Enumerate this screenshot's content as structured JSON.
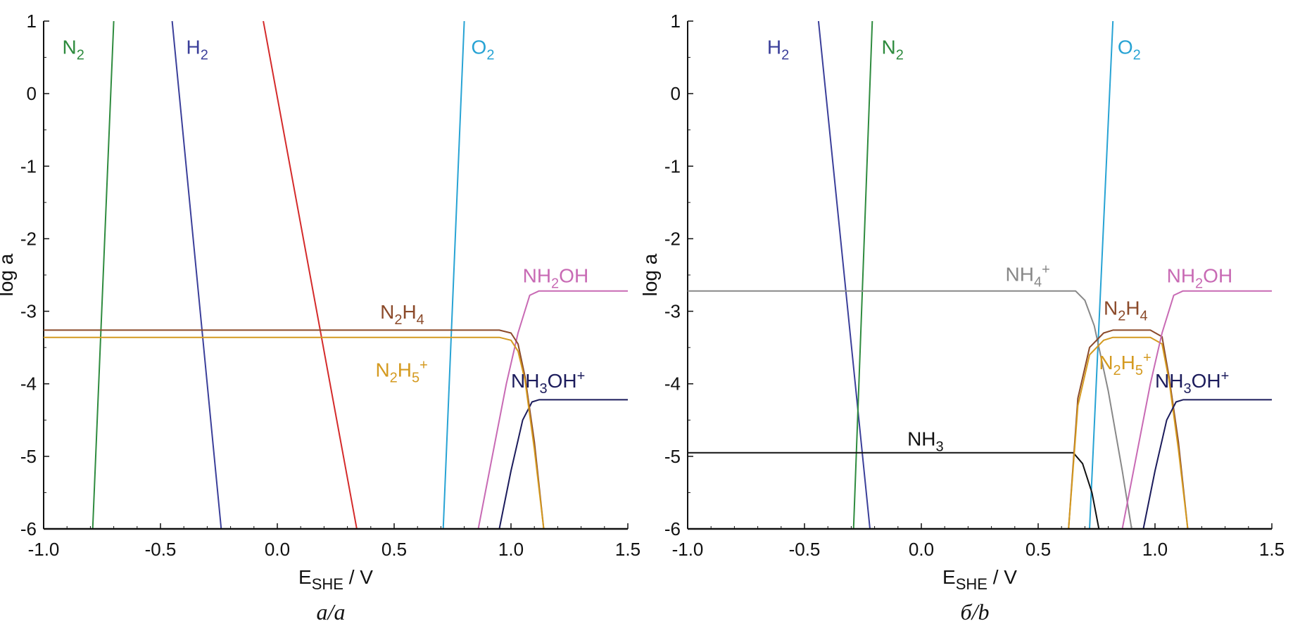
{
  "chart_data": [
    {
      "id": "a",
      "type": "line",
      "caption": "a/a",
      "xlabel_main": "E",
      "xlabel_sub": "SHE",
      "xlabel_rest": " / V",
      "ylabel": "log a",
      "xlim": [
        -1.0,
        1.5
      ],
      "ylim": [
        -6,
        1
      ],
      "xticks": [
        "-1.0",
        "-0.5",
        "0.0",
        "0.5",
        "1.0",
        "1.5"
      ],
      "yticks": [
        "1",
        "0",
        "-1",
        "-2",
        "-3",
        "-4",
        "-5",
        "-6"
      ],
      "series": [
        {
          "name": "N2",
          "color": "#2e8b3e",
          "points": [
            [
              -0.79,
              -6
            ],
            [
              -0.7,
              1
            ]
          ]
        },
        {
          "name": "H2",
          "color": "#3b3f9a",
          "points": [
            [
              -0.45,
              1
            ],
            [
              -0.24,
              -6
            ]
          ]
        },
        {
          "name": "red",
          "color": "#d42a2a",
          "points": [
            [
              -0.06,
              1
            ],
            [
              0.34,
              -6
            ]
          ]
        },
        {
          "name": "O2",
          "color": "#27a3d4",
          "points": [
            [
              0.71,
              -6
            ],
            [
              0.8,
              1
            ]
          ]
        },
        {
          "name": "NH2OH",
          "color": "#c86ab4",
          "points": [
            [
              0.86,
              -6
            ],
            [
              0.92,
              -5
            ],
            [
              0.98,
              -4
            ],
            [
              1.03,
              -3.3
            ],
            [
              1.08,
              -2.78
            ],
            [
              1.12,
              -2.72
            ],
            [
              1.5,
              -2.72
            ]
          ]
        },
        {
          "name": "NH3OH+",
          "color": "#1c1c5c",
          "points": [
            [
              0.95,
              -6
            ],
            [
              1.0,
              -5.2
            ],
            [
              1.05,
              -4.5
            ],
            [
              1.09,
              -4.25
            ],
            [
              1.12,
              -4.22
            ],
            [
              1.5,
              -4.22
            ]
          ]
        },
        {
          "name": "N2H4",
          "color": "#8b4a2a",
          "points": [
            [
              -1.0,
              -3.26
            ],
            [
              0.95,
              -3.26
            ],
            [
              1.0,
              -3.3
            ],
            [
              1.03,
              -3.45
            ],
            [
              1.06,
              -3.9
            ],
            [
              1.1,
              -4.8
            ],
            [
              1.14,
              -6
            ]
          ]
        },
        {
          "name": "N2H5+",
          "color": "#d49a20",
          "points": [
            [
              -1.0,
              -3.36
            ],
            [
              0.95,
              -3.36
            ],
            [
              1.0,
              -3.4
            ],
            [
              1.03,
              -3.55
            ],
            [
              1.06,
              -3.95
            ],
            [
              1.1,
              -4.9
            ],
            [
              1.14,
              -6
            ]
          ]
        },
        {
          "name": "baseline",
          "color": "#111111",
          "points": [
            [
              -1.0,
              -6
            ],
            [
              1.5,
              -6
            ]
          ]
        }
      ],
      "labels": [
        {
          "text": "N",
          "sub": "2",
          "sup": "",
          "x": -0.92,
          "y": 0.55,
          "color": "#2e8b3e"
        },
        {
          "text": "H",
          "sub": "2",
          "sup": "",
          "x": -0.39,
          "y": 0.55,
          "color": "#3b3f9a"
        },
        {
          "text": "O",
          "sub": "2",
          "sup": "",
          "x": 0.83,
          "y": 0.55,
          "color": "#27a3d4"
        },
        {
          "text": "NH",
          "sub": "2",
          "sup": "",
          "text2": "OH",
          "x": 1.05,
          "y": -2.6,
          "color": "#c86ab4"
        },
        {
          "text": "N",
          "sub": "2",
          "sup": "",
          "text2": "H",
          "sub2": "4",
          "x": 0.44,
          "y": -3.1,
          "color": "#8b4a2a"
        },
        {
          "text": "N",
          "sub": "2",
          "sup": "+",
          "text2": "H",
          "sub2": "5",
          "x": 0.42,
          "y": -3.9,
          "color": "#d49a20"
        },
        {
          "text": "NH",
          "sub": "3",
          "sup": "+",
          "text2": "OH",
          "x": 1.0,
          "y": -4.05,
          "color": "#1c1c5c"
        }
      ]
    },
    {
      "id": "b",
      "type": "line",
      "caption": "б/b",
      "xlabel_main": "E",
      "xlabel_sub": "SHE",
      "xlabel_rest": " / V",
      "ylabel": "log a",
      "xlim": [
        -1.0,
        1.5
      ],
      "ylim": [
        -6,
        1
      ],
      "xticks": [
        "-1.0",
        "-0.5",
        "0.0",
        "0.5",
        "1.0",
        "1.5"
      ],
      "yticks": [
        "1",
        "0",
        "-1",
        "-2",
        "-3",
        "-4",
        "-5",
        "-6"
      ],
      "series": [
        {
          "name": "H2",
          "color": "#3b3f9a",
          "points": [
            [
              -0.44,
              1
            ],
            [
              -0.22,
              -6
            ]
          ]
        },
        {
          "name": "N2",
          "color": "#2e8b3e",
          "points": [
            [
              -0.29,
              -6
            ],
            [
              -0.21,
              1
            ]
          ]
        },
        {
          "name": "O2",
          "color": "#27a3d4",
          "points": [
            [
              0.72,
              -6
            ],
            [
              0.82,
              1
            ]
          ]
        },
        {
          "name": "NH4+",
          "color": "#888888",
          "points": [
            [
              -1.0,
              -2.72
            ],
            [
              0.66,
              -2.72
            ],
            [
              0.7,
              -2.85
            ],
            [
              0.74,
              -3.2
            ],
            [
              0.8,
              -4.1
            ],
            [
              0.86,
              -5.2
            ],
            [
              0.9,
              -6
            ]
          ]
        },
        {
          "name": "NH3",
          "color": "#111111",
          "points": [
            [
              -1.0,
              -4.95
            ],
            [
              0.65,
              -4.95
            ],
            [
              0.69,
              -5.1
            ],
            [
              0.73,
              -5.5
            ],
            [
              0.76,
              -6
            ]
          ]
        },
        {
          "name": "N2H4",
          "color": "#8b4a2a",
          "points": [
            [
              0.63,
              -6
            ],
            [
              0.67,
              -4.2
            ],
            [
              0.72,
              -3.5
            ],
            [
              0.78,
              -3.3
            ],
            [
              0.82,
              -3.26
            ],
            [
              0.98,
              -3.26
            ],
            [
              1.03,
              -3.35
            ],
            [
              1.06,
              -3.9
            ],
            [
              1.1,
              -4.8
            ],
            [
              1.14,
              -6
            ]
          ]
        },
        {
          "name": "N2H5+",
          "color": "#d49a20",
          "points": [
            [
              0.63,
              -6
            ],
            [
              0.67,
              -4.3
            ],
            [
              0.72,
              -3.6
            ],
            [
              0.78,
              -3.4
            ],
            [
              0.82,
              -3.36
            ],
            [
              0.98,
              -3.36
            ],
            [
              1.03,
              -3.45
            ],
            [
              1.06,
              -3.95
            ],
            [
              1.1,
              -4.9
            ],
            [
              1.14,
              -6
            ]
          ]
        },
        {
          "name": "NH2OH",
          "color": "#c86ab4",
          "points": [
            [
              0.86,
              -6
            ],
            [
              0.92,
              -5
            ],
            [
              0.98,
              -4
            ],
            [
              1.03,
              -3.3
            ],
            [
              1.08,
              -2.78
            ],
            [
              1.12,
              -2.72
            ],
            [
              1.5,
              -2.72
            ]
          ]
        },
        {
          "name": "NH3OH+",
          "color": "#1c1c5c",
          "points": [
            [
              0.95,
              -6
            ],
            [
              1.0,
              -5.2
            ],
            [
              1.05,
              -4.5
            ],
            [
              1.09,
              -4.25
            ],
            [
              1.12,
              -4.22
            ],
            [
              1.5,
              -4.22
            ]
          ]
        },
        {
          "name": "baseline",
          "color": "#111111",
          "points": [
            [
              -1.0,
              -6
            ],
            [
              1.5,
              -6
            ]
          ]
        }
      ],
      "labels": [
        {
          "text": "H",
          "sub": "2",
          "sup": "",
          "x": -0.66,
          "y": 0.55,
          "color": "#3b3f9a"
        },
        {
          "text": "N",
          "sub": "2",
          "sup": "",
          "x": -0.17,
          "y": 0.55,
          "color": "#2e8b3e"
        },
        {
          "text": "O",
          "sub": "2",
          "sup": "",
          "x": 0.84,
          "y": 0.55,
          "color": "#27a3d4"
        },
        {
          "text": "NH",
          "sub": "4",
          "sup": "+",
          "x": 0.36,
          "y": -2.58,
          "color": "#888888"
        },
        {
          "text": "NH",
          "sub": "2",
          "sup": "",
          "text2": "OH",
          "x": 1.05,
          "y": -2.6,
          "color": "#c86ab4"
        },
        {
          "text": "N",
          "sub": "2",
          "sup": "",
          "text2": "H",
          "sub2": "4",
          "x": 0.78,
          "y": -3.05,
          "color": "#8b4a2a"
        },
        {
          "text": "N",
          "sub": "2",
          "sup": "+",
          "text2": "H",
          "sub2": "5",
          "x": 0.76,
          "y": -3.8,
          "color": "#d49a20"
        },
        {
          "text": "NH",
          "sub": "3",
          "sup": "+",
          "text2": "OH",
          "x": 1.0,
          "y": -4.05,
          "color": "#1c1c5c"
        },
        {
          "text": "NH",
          "sub": "3",
          "sup": "",
          "x": -0.06,
          "y": -4.85,
          "color": "#111111"
        }
      ]
    }
  ]
}
